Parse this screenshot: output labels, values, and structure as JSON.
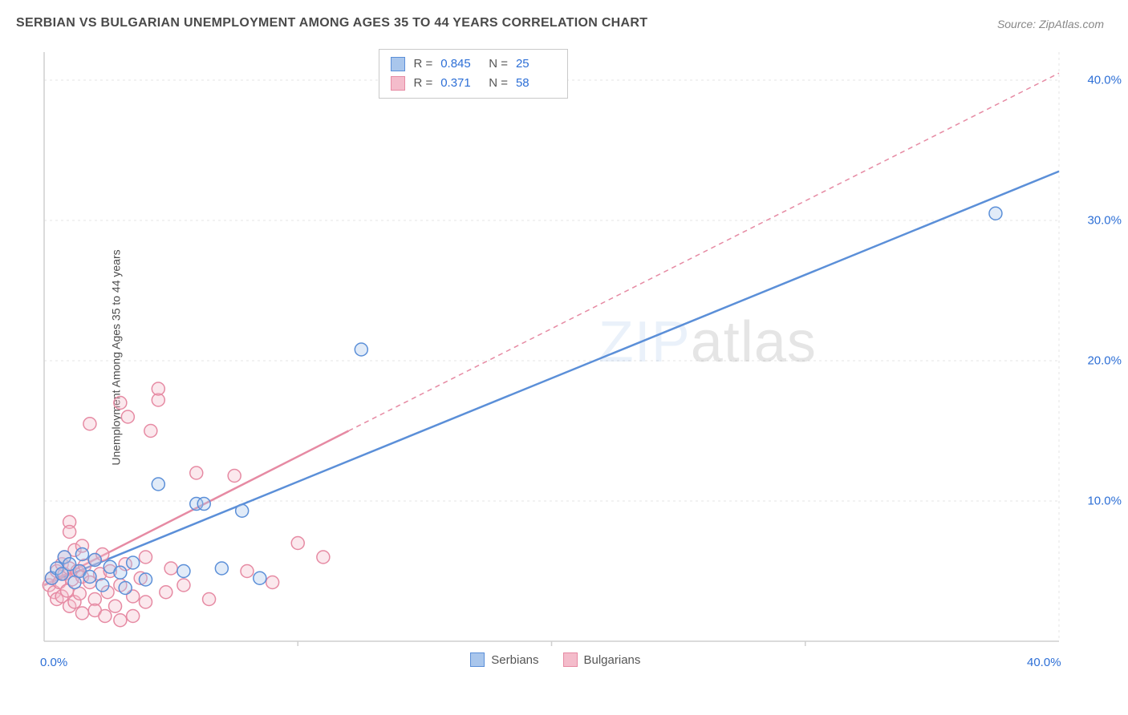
{
  "title": "SERBIAN VS BULGARIAN UNEMPLOYMENT AMONG AGES 35 TO 44 YEARS CORRELATION CHART",
  "source": "Source: ZipAtlas.com",
  "ylabel": "Unemployment Among Ages 35 to 44 years",
  "watermark_zip": "ZIP",
  "watermark_atlas": "atlas",
  "chart": {
    "type": "scatter",
    "background_color": "#ffffff",
    "grid_color": "#e4e4e4",
    "axis_color": "#cfcfcf",
    "tick_font_color": "#2d6fd6",
    "tick_fontsize": 15,
    "xlim": [
      0,
      40
    ],
    "ylim": [
      0,
      42
    ],
    "x_ticks_minor": [
      10,
      20,
      30
    ],
    "x_tick_min_label": "0.0%",
    "x_tick_max_label": "40.0%",
    "y_grid_lines": [
      10,
      20,
      30,
      40
    ],
    "y_tick_labels": [
      "10.0%",
      "20.0%",
      "30.0%",
      "40.0%"
    ],
    "marker_radius": 8,
    "marker_stroke_width": 1.5,
    "marker_fill_opacity": 0.35,
    "series": [
      {
        "name": "Serbians",
        "color_stroke": "#5b8fd8",
        "color_fill": "#a9c6ec",
        "R": "0.845",
        "N": "25",
        "trend": {
          "x1": 0,
          "y1": 4.0,
          "x2": 40,
          "y2": 33.5,
          "dash": false,
          "width": 2.5
        },
        "points": [
          [
            0.3,
            4.5
          ],
          [
            0.5,
            5.2
          ],
          [
            0.7,
            4.8
          ],
          [
            0.8,
            6.0
          ],
          [
            1.0,
            5.5
          ],
          [
            1.2,
            4.2
          ],
          [
            1.4,
            5.0
          ],
          [
            1.5,
            6.2
          ],
          [
            1.8,
            4.6
          ],
          [
            2.0,
            5.8
          ],
          [
            2.3,
            4.0
          ],
          [
            2.6,
            5.3
          ],
          [
            3.0,
            4.9
          ],
          [
            3.2,
            3.8
          ],
          [
            3.5,
            5.6
          ],
          [
            4.0,
            4.4
          ],
          [
            4.5,
            11.2
          ],
          [
            5.5,
            5.0
          ],
          [
            6.0,
            9.8
          ],
          [
            6.3,
            9.8
          ],
          [
            7.0,
            5.2
          ],
          [
            7.8,
            9.3
          ],
          [
            8.5,
            4.5
          ],
          [
            12.5,
            20.8
          ],
          [
            37.5,
            30.5
          ]
        ]
      },
      {
        "name": "Bulgarians",
        "color_stroke": "#e68aa3",
        "color_fill": "#f4bccb",
        "R": "0.371",
        "N": "58",
        "trend": {
          "x1": 0,
          "y1": 4.0,
          "x2": 12,
          "y2": 15.0,
          "dash": false,
          "width": 2.5
        },
        "trend_ext": {
          "x1": 12,
          "y1": 15.0,
          "x2": 40,
          "y2": 40.5,
          "dash": true,
          "width": 1.5
        },
        "points": [
          [
            0.2,
            4.0
          ],
          [
            0.3,
            4.5
          ],
          [
            0.4,
            3.5
          ],
          [
            0.5,
            5.0
          ],
          [
            0.5,
            3.0
          ],
          [
            0.6,
            4.2
          ],
          [
            0.7,
            5.5
          ],
          [
            0.7,
            3.2
          ],
          [
            0.8,
            4.8
          ],
          [
            0.8,
            6.0
          ],
          [
            0.9,
            3.6
          ],
          [
            1.0,
            5.2
          ],
          [
            1.0,
            2.5
          ],
          [
            1.0,
            8.5
          ],
          [
            1.0,
            7.8
          ],
          [
            1.1,
            4.4
          ],
          [
            1.2,
            6.5
          ],
          [
            1.2,
            2.8
          ],
          [
            1.3,
            5.0
          ],
          [
            1.4,
            3.4
          ],
          [
            1.5,
            4.6
          ],
          [
            1.5,
            6.8
          ],
          [
            1.5,
            2.0
          ],
          [
            1.6,
            5.4
          ],
          [
            1.8,
            4.2
          ],
          [
            1.8,
            15.5
          ],
          [
            2.0,
            3.0
          ],
          [
            2.0,
            5.8
          ],
          [
            2.0,
            2.2
          ],
          [
            2.2,
            4.8
          ],
          [
            2.3,
            6.2
          ],
          [
            2.4,
            1.8
          ],
          [
            2.5,
            3.5
          ],
          [
            2.6,
            5.0
          ],
          [
            2.8,
            2.5
          ],
          [
            3.0,
            4.0
          ],
          [
            3.0,
            17.0
          ],
          [
            3.0,
            1.5
          ],
          [
            3.2,
            5.5
          ],
          [
            3.3,
            16.0
          ],
          [
            3.5,
            3.2
          ],
          [
            3.5,
            1.8
          ],
          [
            3.8,
            4.5
          ],
          [
            4.0,
            6.0
          ],
          [
            4.0,
            2.8
          ],
          [
            4.2,
            15.0
          ],
          [
            4.5,
            17.2
          ],
          [
            4.5,
            18.0
          ],
          [
            4.8,
            3.5
          ],
          [
            5.0,
            5.2
          ],
          [
            5.5,
            4.0
          ],
          [
            6.0,
            12.0
          ],
          [
            6.5,
            3.0
          ],
          [
            7.5,
            11.8
          ],
          [
            8.0,
            5.0
          ],
          [
            9.0,
            4.2
          ],
          [
            10.0,
            7.0
          ],
          [
            11.0,
            6.0
          ]
        ]
      }
    ],
    "stat_box": {
      "r_label": "R =",
      "n_label": "N ="
    },
    "bottom_legend": {
      "items": [
        "Serbians",
        "Bulgarians"
      ]
    }
  }
}
